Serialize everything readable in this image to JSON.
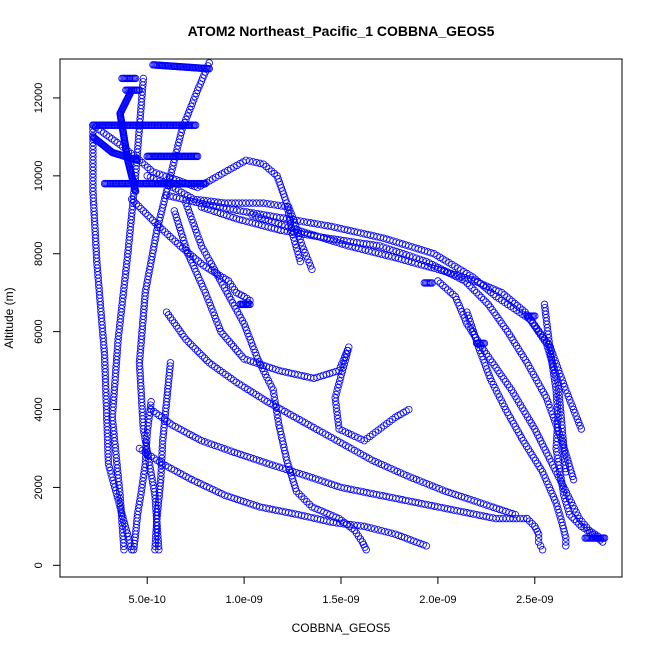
{
  "chart_data": {
    "type": "scatter",
    "title": "ATOM2 Northeast_Pacific_1 COBBNA_GEOS5",
    "xlabel": "COBBNA_GEOS5",
    "ylabel": "Altitude (m)",
    "xlim": [
      5e-11,
      2.95e-09
    ],
    "ylim": [
      -300,
      13000
    ],
    "x_ticks": [
      5e-10,
      1e-09,
      1.5e-09,
      2e-09,
      2.5e-09
    ],
    "x_tick_labels": [
      "5.0e-10",
      "1.0e-09",
      "1.5e-09",
      "2.0e-09",
      "2.5e-09"
    ],
    "y_ticks": [
      0,
      2000,
      4000,
      6000,
      8000,
      10000,
      12000
    ],
    "y_tick_labels": [
      "0",
      "2000",
      "4000",
      "6000",
      "8000",
      "10000",
      "12000"
    ],
    "marker": "open-circle",
    "color": "#0000ff",
    "profiles": [
      {
        "x": [
          4.2e-10,
          3.6e-10,
          3e-10,
          2.8e-10,
          2.4e-10,
          2.2e-10,
          2.2e-10
        ],
        "y": [
          400,
          1500,
          2600,
          5400,
          7800,
          9600,
          11300
        ]
      },
      {
        "x": [
          3.8e-10,
          3.6e-10,
          3.2e-10,
          3.5e-10,
          4e-10,
          4.4e-10,
          4.8e-10
        ],
        "y": [
          400,
          1800,
          3800,
          5800,
          8000,
          10000,
          12500
        ]
      },
      {
        "x": [
          5.6e-10,
          5.4e-10,
          4.8e-10,
          4.6e-10,
          4.9e-10,
          5.5e-10,
          6.2e-10,
          6.8e-10,
          7.6e-10,
          8.2e-10
        ],
        "y": [
          400,
          1800,
          3500,
          5200,
          7000,
          8600,
          10000,
          11200,
          12200,
          12900
        ]
      },
      {
        "x": [
          2.2e-10,
          3.6e-10,
          4.6e-10,
          5.3e-10,
          6.5e-10,
          7.6e-10,
          1.01e-09,
          1.1e-09,
          1.17e-09,
          1.22e-09,
          1.25e-09,
          1.29e-09
        ],
        "y": [
          11300,
          10800,
          10400,
          10100,
          9900,
          9700,
          10400,
          10300,
          10000,
          9300,
          8500,
          7800
        ]
      },
      {
        "x": [
          5e-10,
          6e-10,
          7.4e-10,
          9e-10,
          1.1e-09,
          1.23e-09,
          1.26e-09,
          1.3e-09,
          1.35e-09
        ],
        "y": [
          10000,
          9800,
          9400,
          9300,
          9300,
          9200,
          8800,
          8200,
          7600
        ]
      },
      {
        "x": [
          4.2e-10,
          5.4e-10,
          6.7e-10,
          7.9e-10,
          9.2e-10,
          9.6e-10,
          1e-09,
          1.03e-09,
          1.01e-09,
          9.8e-10
        ],
        "y": [
          9400,
          8800,
          8200,
          7700,
          7300,
          7000,
          6900,
          6800,
          6700,
          6700
        ]
      },
      {
        "x": [
          6e-10,
          7.7e-10,
          9.8e-10,
          1.22e-09,
          1.45e-09,
          1.72e-09,
          1.98e-09,
          2.18e-09,
          2.3e-09,
          2.48e-09,
          2.58e-09,
          2.66e-09,
          2.74e-09
        ],
        "y": [
          9500,
          9300,
          9100,
          8900,
          8700,
          8400,
          8000,
          7400,
          6900,
          6300,
          5600,
          4500,
          3500
        ]
      },
      {
        "x": [
          7.8e-10,
          9.6e-10,
          1.19e-09,
          1.43e-09,
          1.7e-09,
          1.94e-09,
          2.14e-09,
          2.26e-09,
          2.36e-09,
          2.46e-09,
          2.56e-09,
          2.64e-09,
          2.7e-09
        ],
        "y": [
          9200,
          8900,
          8600,
          8400,
          8200,
          7800,
          7300,
          6700,
          6000,
          5200,
          4300,
          3200,
          2200
        ]
      },
      {
        "x": [
          1.04e-09,
          1.28e-09,
          1.54e-09,
          1.78e-09,
          2e-09,
          2.19e-09,
          2.33e-09,
          2.45e-09,
          2.56e-09,
          2.62e-09,
          2.64e-09,
          2.66e-09
        ],
        "y": [
          9000,
          8600,
          8200,
          7900,
          7600,
          7300,
          7000,
          6500,
          5700,
          4700,
          3600,
          2400
        ]
      },
      {
        "x": [
          2e-09,
          2.09e-09,
          2.15e-09,
          2.24e-09,
          2.38e-09,
          2.5e-09,
          2.6e-09,
          2.68e-09,
          2.73e-09,
          2.78e-09,
          2.84e-09
        ],
        "y": [
          7300,
          6900,
          6200,
          5500,
          4500,
          3500,
          2500,
          1700,
          1200,
          900,
          700
        ]
      },
      {
        "x": [
          2.15e-09,
          2.21e-09,
          2.27e-09,
          2.35e-09,
          2.44e-09,
          2.54e-09,
          2.61e-09,
          2.64e-09,
          2.66e-09,
          2.66e-09
        ],
        "y": [
          6500,
          5600,
          4800,
          4000,
          3200,
          2400,
          1600,
          1100,
          700,
          500
        ]
      },
      {
        "x": [
          2.55e-09,
          2.58e-09,
          2.61e-09,
          2.62e-09,
          2.61e-09,
          2.63e-09,
          2.65e-09,
          2.68e-09,
          2.74e-09,
          2.8e-09,
          2.85e-09
        ],
        "y": [
          6700,
          5500,
          4500,
          3800,
          3000,
          2400,
          1800,
          1300,
          1000,
          800,
          600
        ]
      },
      {
        "x": [
          7e-10,
          7.8e-10,
          8.9e-10,
          1e-09,
          1.07e-09,
          1.15e-09,
          1.18e-09,
          1.22e-09,
          1.27e-09,
          1.35e-09,
          1.49e-09,
          1.57e-09,
          1.61e-09,
          1.63e-09
        ],
        "y": [
          9300,
          8200,
          7200,
          6200,
          5300,
          4500,
          3600,
          2700,
          1900,
          1500,
          1200,
          900,
          600,
          400
        ]
      },
      {
        "x": [
          6.4e-10,
          7.1e-10,
          8e-10,
          8.8e-10,
          1e-09,
          1.18e-09,
          1.36e-09,
          1.49e-09,
          1.54e-09,
          1.47e-09,
          1.49e-09,
          1.62e-09,
          1.78e-09,
          1.85e-09
        ],
        "y": [
          9100,
          8000,
          7000,
          6000,
          5300,
          5000,
          4800,
          5000,
          5600,
          4300,
          3500,
          3200,
          3800,
          4000
        ]
      },
      {
        "x": [
          6e-10,
          7e-10,
          8.2e-10,
          9.6e-10,
          1.12e-09,
          1.3e-09,
          1.48e-09,
          1.66e-09,
          1.84e-09,
          2.04e-09,
          2.22e-09,
          2.4e-09
        ],
        "y": [
          6500,
          5800,
          5200,
          4700,
          4200,
          3700,
          3200,
          2700,
          2300,
          1900,
          1600,
          1300
        ]
      },
      {
        "x": [
          5.2e-10,
          6.3e-10,
          7.8e-10,
          9.5e-10,
          1.13e-09,
          1.32e-09,
          1.5e-09,
          1.7e-09,
          1.9e-09,
          2.1e-09,
          2.3e-09,
          2.46e-09
        ],
        "y": [
          4000,
          3600,
          3200,
          2900,
          2600,
          2300,
          2000,
          1800,
          1600,
          1400,
          1200,
          1200
        ]
      },
      {
        "x": [
          4.6e-10,
          5.8e-10,
          7.3e-10,
          9e-10,
          1.08e-09,
          1.28e-09,
          1.46e-09,
          1.62e-09,
          1.78e-09,
          1.94e-09
        ],
        "y": [
          3000,
          2600,
          2200,
          1800,
          1500,
          1300,
          1100,
          1000,
          800,
          500
        ]
      },
      {
        "x": [
          5.2e-10,
          5e-10,
          4.9e-10,
          4.7e-10,
          4.5e-10,
          4.4e-10,
          4.3e-10
        ],
        "y": [
          4200,
          3400,
          2600,
          1900,
          1300,
          800,
          400
        ]
      },
      {
        "x": [
          6.2e-10,
          6e-10,
          5.8e-10,
          5.7e-10,
          5.5e-10,
          5.4e-10
        ],
        "y": [
          5200,
          4200,
          3200,
          2200,
          1200,
          400
        ]
      },
      {
        "x": [
          2.46e-09,
          2.5e-09,
          2.52e-09,
          2.52e-09,
          2.53e-09,
          2.54e-09
        ],
        "y": [
          1200,
          1000,
          800,
          600,
          500,
          400
        ]
      }
    ],
    "clusters": [
      {
        "x": [
          2.2e-10,
          7.5e-10
        ],
        "y": [
          11300,
          11300
        ]
      },
      {
        "x": [
          2.2e-10,
          3.2e-10,
          4.5e-10
        ],
        "y": [
          11000,
          10600,
          10400
        ]
      },
      {
        "x": [
          3.7e-10,
          4.4e-10
        ],
        "y": [
          12500,
          12500
        ]
      },
      {
        "x": [
          3.9e-10,
          4.6e-10
        ],
        "y": [
          12200,
          12200
        ]
      },
      {
        "x": [
          5e-10,
          7.6e-10
        ],
        "y": [
          10500,
          10500
        ]
      },
      {
        "x": [
          5.3e-10,
          8.2e-10
        ],
        "y": [
          12850,
          12750
        ]
      },
      {
        "x": [
          2.8e-10,
          8e-10
        ],
        "y": [
          9800,
          9800
        ]
      },
      {
        "x": [
          4.2e-10,
          3.6e-10,
          4e-10,
          4.4e-10
        ],
        "y": [
          12200,
          11600,
          10400,
          9600
        ]
      },
      {
        "x": [
          1.93e-09,
          1.97e-09
        ],
        "y": [
          7250,
          7250
        ]
      },
      {
        "x": [
          2.2e-09,
          2.24e-09
        ],
        "y": [
          5700,
          5700
        ]
      },
      {
        "x": [
          2.46e-09,
          2.5e-09
        ],
        "y": [
          6400,
          6400
        ]
      },
      {
        "x": [
          2.76e-09,
          2.86e-09
        ],
        "y": [
          700,
          700
        ]
      },
      {
        "x": [
          9.8e-10,
          1.03e-09
        ],
        "y": [
          6700,
          6700
        ]
      }
    ]
  }
}
